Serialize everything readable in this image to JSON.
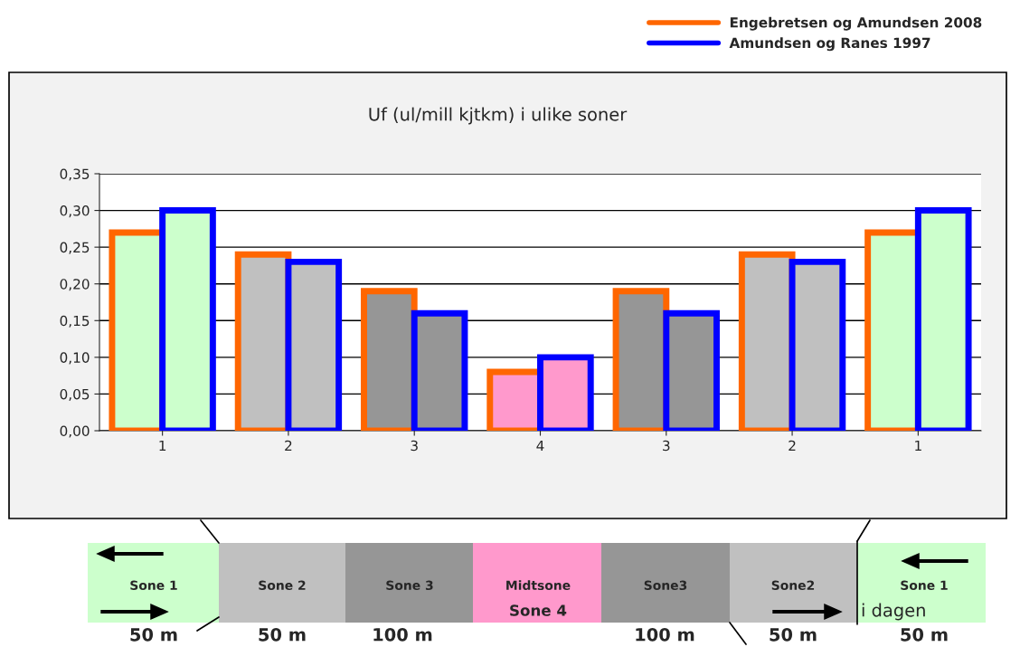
{
  "chart_data": {
    "type": "bar",
    "title": "Uf (ul/mill kjtkm) i ulike soner",
    "categories": [
      "1",
      "2",
      "3",
      "4",
      "3",
      "2",
      "1"
    ],
    "series": [
      {
        "name": "Engebretsen og Amundsen 2008",
        "color": "#ff6600",
        "colors": [
          "#ccffcc",
          "#c0c0c0",
          "#969696",
          "#ff99cc",
          "#969696",
          "#c0c0c0",
          "#ccffcc"
        ],
        "values": [
          0.27,
          0.24,
          0.19,
          0.08,
          0.19,
          0.24,
          0.27
        ]
      },
      {
        "name": "Amundsen og Ranes 1997",
        "color": "#0000ff",
        "colors": [
          "#ccffcc",
          "#c0c0c0",
          "#969696",
          "#ff99cc",
          "#969696",
          "#c0c0c0",
          "#ccffcc"
        ],
        "values": [
          0.3,
          0.23,
          0.16,
          0.1,
          0.16,
          0.23,
          0.3
        ]
      }
    ],
    "ylim": [
      0,
      0.35
    ],
    "yticks": [
      {
        "value": 0,
        "label": "0,00"
      },
      {
        "value": 0.05,
        "label": "0,05"
      },
      {
        "value": 0.1,
        "label": "0,10"
      },
      {
        "value": 0.15,
        "label": "0,15"
      },
      {
        "value": 0.2,
        "label": "0,20"
      },
      {
        "value": 0.25,
        "label": "0,25"
      },
      {
        "value": 0.3,
        "label": "0,30"
      },
      {
        "value": 0.35,
        "label": "0,35"
      }
    ],
    "grid": "y",
    "legend": "top right",
    "annotations": [
      "Sone 1",
      "Sone 2",
      "Sone 3",
      "Midtsone",
      "Sone 4",
      "Sone3",
      "Sone2",
      "Sone 1",
      "i dagen",
      "50 m",
      "50 m",
      "100 m",
      "100 m",
      "50 m",
      "50 m"
    ]
  }
}
